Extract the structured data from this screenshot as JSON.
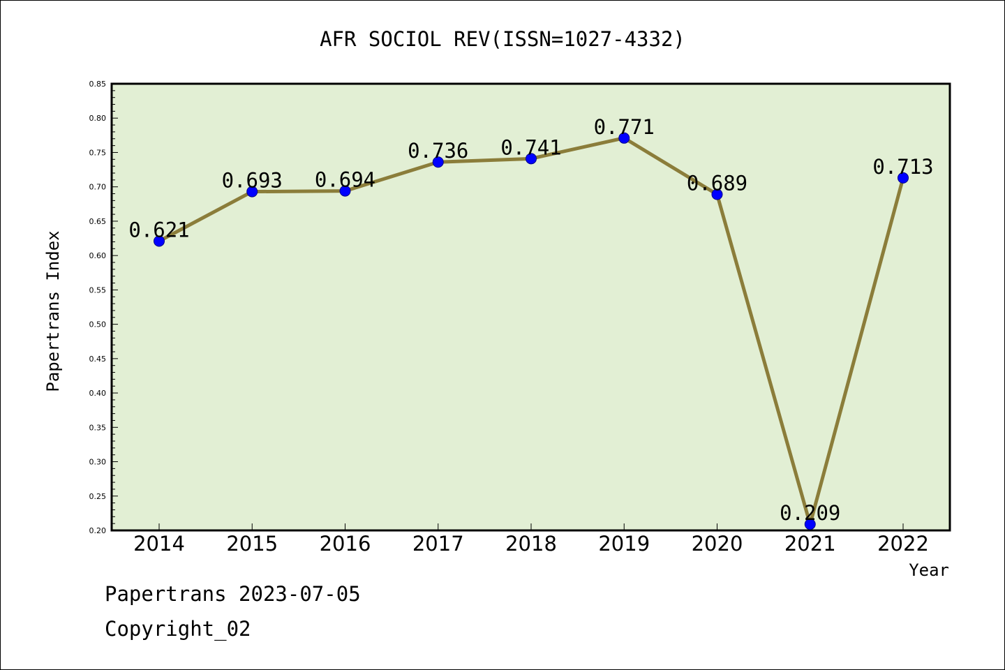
{
  "chart_data": {
    "type": "line",
    "title": "AFR SOCIOL REV(ISSN=1027-4332)",
    "xlabel": "Year",
    "ylabel": "Papertrans Index",
    "categories": [
      "2014",
      "2015",
      "2016",
      "2017",
      "2018",
      "2019",
      "2020",
      "2021",
      "2022"
    ],
    "values": [
      0.621,
      0.693,
      0.694,
      0.736,
      0.741,
      0.771,
      0.689,
      0.209,
      0.713
    ],
    "data_labels": [
      "0.621",
      "0.693",
      "0.694",
      "0.736",
      "0.741",
      "0.771",
      "0.689",
      "0.209",
      "0.713"
    ],
    "ylim": [
      0.2,
      0.85
    ],
    "yticks": [
      "0.20",
      "0.25",
      "0.30",
      "0.35",
      "0.40",
      "0.45",
      "0.50",
      "0.55",
      "0.60",
      "0.65",
      "0.70",
      "0.75",
      "0.80",
      "0.85"
    ],
    "grid": false,
    "legend": "none",
    "colors": {
      "plot_background": "#e2efd4",
      "line": "#8b7d3a",
      "marker": "#0000ff"
    }
  },
  "footer": {
    "source": "Papertrans 2023-07-05",
    "copyright": "Copyright_02"
  }
}
